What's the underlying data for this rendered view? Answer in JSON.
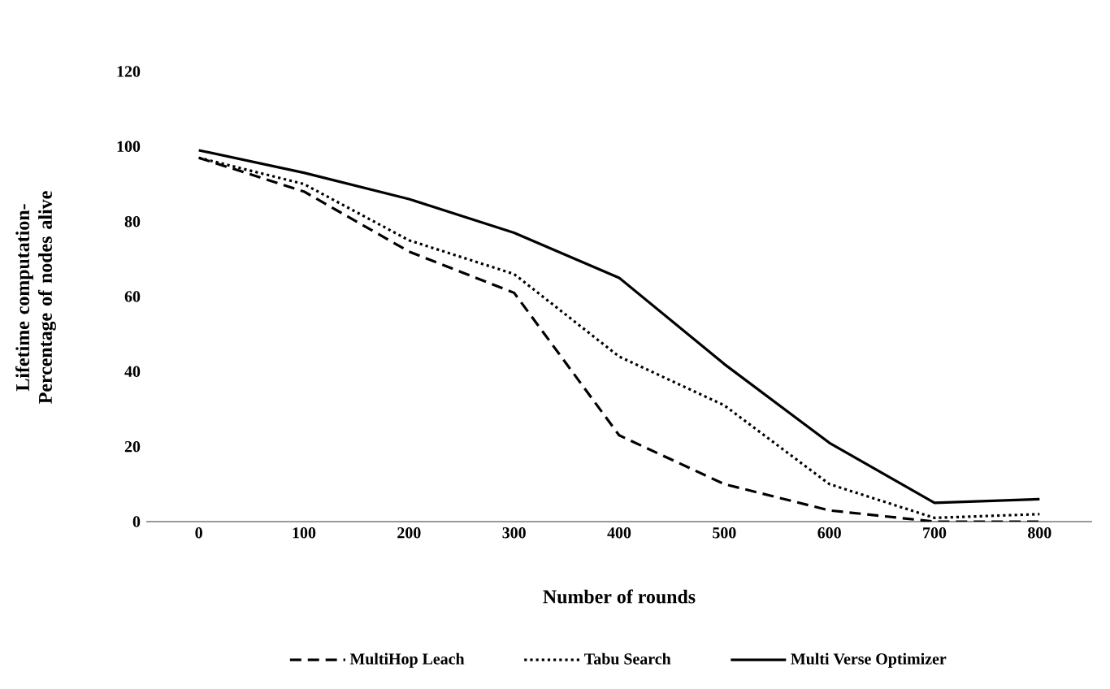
{
  "chart_data": {
    "type": "line",
    "xlabel": "Number of rounds",
    "ylabel": "Lifetime computation- Percentage of nodes alive",
    "categories": [
      "0",
      "100",
      "200",
      "300",
      "400",
      "500",
      "600",
      "700",
      "800"
    ],
    "ylim": [
      0,
      120
    ],
    "yticks": [
      0,
      20,
      40,
      60,
      80,
      100,
      120
    ],
    "grid": false,
    "legend": "bottom",
    "marker": "none",
    "series": [
      {
        "name": "MultiHop Leach",
        "color": "#000000",
        "line_style": "dashed",
        "values": [
          97,
          88,
          72,
          61,
          23,
          10,
          3,
          0,
          0
        ]
      },
      {
        "name": "Tabu Search",
        "color": "#000000",
        "line_style": "dotted",
        "values": [
          97,
          90,
          75,
          66,
          44,
          31,
          10,
          1,
          2
        ]
      },
      {
        "name": "Multi  Verse Optimizer",
        "color": "#000000",
        "line_style": "solid",
        "values": [
          99,
          93,
          86,
          77,
          65,
          42,
          21,
          5,
          6
        ]
      }
    ]
  }
}
